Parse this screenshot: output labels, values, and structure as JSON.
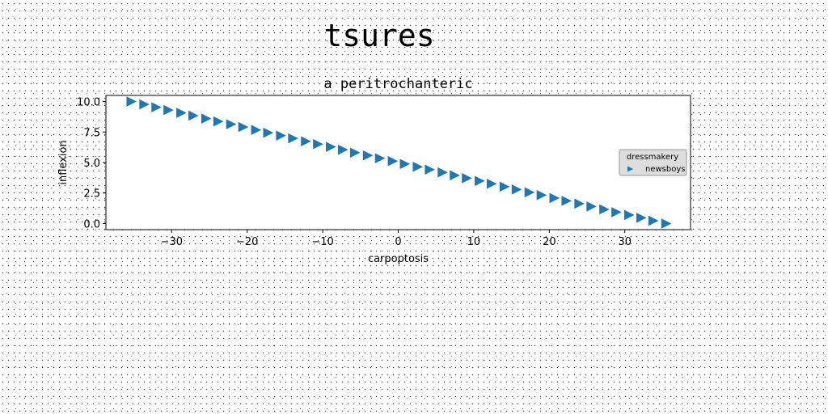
{
  "suptitle": "tsures",
  "chart_data": {
    "type": "scatter",
    "title": "a peritrochanteric",
    "xlabel": "carpoptosis",
    "ylabel": "inflexion",
    "xlim": [
      -38.7,
      38.7
    ],
    "ylim": [
      -0.5,
      10.5
    ],
    "xticks": [
      -30,
      -20,
      -10,
      0,
      10,
      20,
      30
    ],
    "xtick_labels": [
      "−30",
      "−20",
      "−10",
      "0",
      "10",
      "20",
      "30"
    ],
    "yticks": [
      0.0,
      2.5,
      5.0,
      7.5,
      10.0
    ],
    "ytick_labels": [
      "0.0",
      "2.5",
      "5.0",
      "7.5",
      "10.0"
    ],
    "marker": "triangle-right",
    "legend": {
      "title": "dressmakery",
      "location": "center-right"
    },
    "series": [
      {
        "name": "newsboys",
        "color": "#1f77b4",
        "x": [
          -35.4,
          -33.7,
          -32.1,
          -30.5,
          -28.8,
          -27.2,
          -25.5,
          -23.9,
          -22.2,
          -20.6,
          -18.9,
          -17.3,
          -15.6,
          -14.0,
          -12.3,
          -10.7,
          -9.0,
          -7.4,
          -5.8,
          -4.1,
          -2.5,
          -0.8,
          0.8,
          2.5,
          4.1,
          5.8,
          7.4,
          9.0,
          10.7,
          12.3,
          14.0,
          15.6,
          17.3,
          18.9,
          20.6,
          22.2,
          23.9,
          25.5,
          27.2,
          28.8,
          30.5,
          32.1,
          33.7,
          35.4
        ],
        "y": [
          10.0,
          9.77,
          9.53,
          9.3,
          9.07,
          8.84,
          8.6,
          8.37,
          8.14,
          7.91,
          7.67,
          7.44,
          7.21,
          6.98,
          6.74,
          6.51,
          6.28,
          6.05,
          5.81,
          5.58,
          5.35,
          5.12,
          4.88,
          4.65,
          4.42,
          4.19,
          3.95,
          3.72,
          3.49,
          3.26,
          3.02,
          2.79,
          2.56,
          2.33,
          2.09,
          1.86,
          1.63,
          1.4,
          1.16,
          0.93,
          0.7,
          0.47,
          0.23,
          0.0
        ]
      }
    ]
  }
}
